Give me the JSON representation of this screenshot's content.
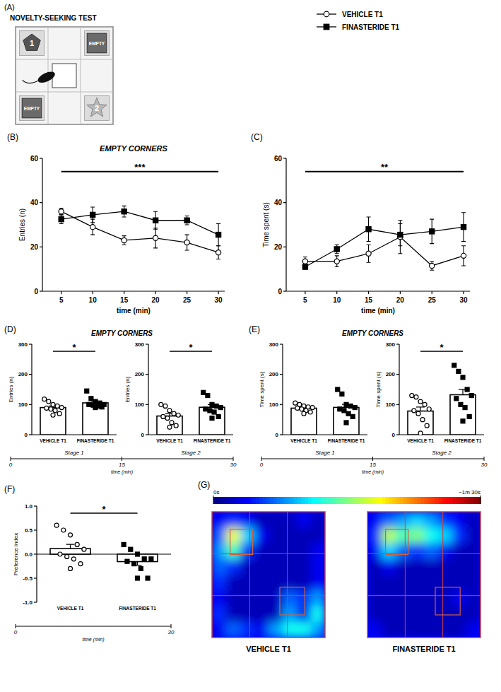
{
  "diagram": {
    "panel": "(A)",
    "title": "NOVELTY-SEEKING TEST",
    "corners": [
      {
        "label": "1",
        "kind": "object"
      },
      {
        "label": "EMPTY",
        "kind": "empty"
      },
      {
        "label": "EMPTY",
        "kind": "empty"
      },
      {
        "label": "2",
        "kind": "object"
      }
    ]
  },
  "chart_data": [
    {
      "type": "line",
      "panel": "(B)",
      "title": "EMPTY CORNERS",
      "xlabel": "time (min)",
      "ylabel": "Entries (n)",
      "x": [
        5,
        10,
        15,
        20,
        25,
        30
      ],
      "xlim": [
        2,
        31
      ],
      "xticks": [
        5,
        10,
        15,
        20,
        25,
        30
      ],
      "ylim": [
        0,
        60
      ],
      "yticks": [
        0,
        20,
        40,
        60
      ],
      "legend": "top-right",
      "significance": "***",
      "series": [
        {
          "name": "VEHICLE T1",
          "color": "#ffffff",
          "marker": "circle",
          "values": [
            36,
            29,
            23,
            24,
            22,
            17.5
          ],
          "errors": [
            1.5,
            3.5,
            2,
            4.5,
            3.5,
            3
          ]
        },
        {
          "name": "FINASTERIDE T1",
          "color": "#000000",
          "marker": "square",
          "values": [
            32.5,
            34.5,
            36,
            32,
            32,
            25.5
          ],
          "errors": [
            2,
            3.5,
            2.5,
            4,
            2,
            5
          ]
        }
      ]
    },
    {
      "type": "line",
      "panel": "(C)",
      "xlabel": "time (min)",
      "ylabel": "Time spent (s)",
      "x": [
        5,
        10,
        15,
        20,
        25,
        30
      ],
      "xlim": [
        2,
        31
      ],
      "xticks": [
        5,
        10,
        15,
        20,
        25,
        30
      ],
      "ylim": [
        0,
        60
      ],
      "yticks": [
        0,
        20,
        40,
        60
      ],
      "significance": "**",
      "series": [
        {
          "color": "#ffffff",
          "marker": "circle",
          "values": [
            13.5,
            13.5,
            17,
            24.5,
            11.5,
            16
          ],
          "errors": [
            2,
            2.5,
            4,
            7.5,
            2,
            4.5
          ]
        },
        {
          "color": "#000000",
          "marker": "square",
          "values": [
            11,
            19,
            28,
            25.5,
            27,
            29
          ],
          "errors": [
            1,
            2,
            5.5,
            5,
            5.5,
            6.5
          ]
        }
      ]
    },
    {
      "type": "bar",
      "panel": "(D)",
      "title": "EMPTY CORNERS",
      "ylabel": "Entries (n)",
      "ylim": [
        0,
        300
      ],
      "yticks": [
        0,
        100,
        200,
        300
      ],
      "categories": [
        "VEHICLE T1",
        "FINASTERIDE T1"
      ],
      "colors": [
        "#ffffff",
        "#ffffff"
      ],
      "stages": [
        {
          "label": "Stage 1",
          "values": [
            90,
            105.5
          ],
          "errors": [
            5,
            5
          ],
          "significance": "*",
          "points": [
            [
              118,
              110,
              100,
              95,
              90,
              88,
              85,
              80,
              70,
              65
            ],
            [
              145,
              120,
              110,
              105,
              100,
              100,
              98,
              95,
              92,
              90
            ]
          ]
        },
        {
          "label": "Stage 2",
          "values": [
            62,
            91
          ],
          "errors": [
            8,
            9
          ],
          "significance": "*",
          "points": [
            [
              100,
              95,
              80,
              70,
              65,
              60,
              55,
              40,
              30,
              25
            ],
            [
              140,
              130,
              100,
              95,
              90,
              85,
              80,
              75,
              60,
              55
            ]
          ]
        }
      ],
      "timeline": {
        "xlabel": "time (min)",
        "xlim": [
          0,
          30
        ],
        "xticks": [
          0,
          15,
          30
        ]
      }
    },
    {
      "type": "bar",
      "panel": "(E)",
      "title": "EMPTY CORNERS",
      "ylabel": "Time spent (s)",
      "ylim": [
        0,
        300
      ],
      "yticks": [
        0,
        100,
        200,
        300
      ],
      "categories": [
        "VEHICLE T1",
        "FINASTERIDE T1"
      ],
      "colors": [
        "#ffffff",
        "#ffffff"
      ],
      "stages": [
        {
          "label": "Stage 1",
          "values": [
            88,
            90.5
          ],
          "errors": [
            3.5,
            10
          ],
          "points": [
            [
              105,
              100,
              95,
              92,
              90,
              88,
              85,
              80,
              75,
              70
            ],
            [
              150,
              135,
              100,
              95,
              90,
              85,
              80,
              70,
              60,
              40
            ]
          ]
        },
        {
          "label": "Stage 2",
          "values": [
            78.5,
            132.5
          ],
          "errors": [
            13,
            18
          ],
          "significance": "*",
          "points": [
            [
              130,
              125,
              110,
              100,
              85,
              80,
              70,
              50,
              30,
              5
            ],
            [
              230,
              210,
              190,
              150,
              130,
              120,
              100,
              90,
              60,
              45
            ]
          ]
        }
      ],
      "timeline": {
        "xlabel": "time (min)",
        "xlim": [
          0,
          30
        ],
        "xticks": [
          0,
          15,
          30
        ]
      }
    },
    {
      "type": "bar",
      "panel": "(F)",
      "ylabel": "Preference index",
      "ylim": [
        -1,
        1
      ],
      "yticks": [
        {
          "value": -1,
          "label": "-1.0"
        },
        {
          "value": -0.5,
          "label": "-0.5"
        },
        {
          "value": 0,
          "label": "0.0"
        },
        {
          "value": 0.5,
          "label": "0.5"
        },
        {
          "value": 1,
          "label": "1.0"
        }
      ],
      "categories": [
        "VEHICLE T1",
        "FINASTERIDE T1"
      ],
      "colors": [
        "#ffffff",
        "#ffffff"
      ],
      "values": [
        0.115,
        -0.155
      ],
      "errors": [
        0.09,
        0.075
      ],
      "significance": "*",
      "points": [
        [
          0.6,
          0.5,
          0.4,
          0.2,
          0.1,
          0.0,
          -0.05,
          -0.1,
          -0.2,
          -0.3
        ],
        [
          0.2,
          0.1,
          0.0,
          -0.1,
          -0.1,
          -0.15,
          -0.2,
          -0.3,
          -0.5,
          -0.5
        ]
      ],
      "timeline": {
        "xlabel": "time (min)",
        "xlim": [
          0,
          30
        ],
        "xticks": [
          0,
          30
        ]
      }
    },
    {
      "type": "heatmap",
      "panel": "(G)",
      "colorbar": {
        "range": [
          0,
          90
        ],
        "ticks": [
          {
            "value": 0,
            "label": "0s"
          },
          {
            "value": 90,
            "label": "~1m 30s"
          }
        ]
      },
      "maps": [
        {
          "label": "VEHICLE T1",
          "cells": [
            [
              10,
              15,
              10,
              5,
              5,
              5,
              10,
              5
            ],
            [
              20,
              55,
              30,
              10,
              5,
              5,
              5,
              5
            ],
            [
              25,
              40,
              15,
              5,
              5,
              5,
              5,
              10
            ],
            [
              20,
              15,
              5,
              5,
              5,
              5,
              5,
              10
            ],
            [
              15,
              5,
              5,
              5,
              5,
              5,
              5,
              10
            ],
            [
              10,
              5,
              5,
              5,
              5,
              20,
              15,
              25
            ],
            [
              15,
              5,
              5,
              5,
              5,
              25,
              10,
              35
            ],
            [
              10,
              20,
              15,
              10,
              25,
              35,
              35,
              25
            ]
          ]
        },
        {
          "label": "FINASTERIDE T1",
          "cells": [
            [
              10,
              20,
              25,
              30,
              25,
              15,
              10,
              5
            ],
            [
              15,
              50,
              40,
              45,
              35,
              30,
              15,
              5
            ],
            [
              10,
              30,
              20,
              15,
              20,
              10,
              5,
              5
            ],
            [
              5,
              10,
              5,
              5,
              5,
              5,
              5,
              5
            ],
            [
              5,
              5,
              5,
              5,
              5,
              5,
              5,
              5
            ],
            [
              5,
              5,
              5,
              5,
              5,
              5,
              10,
              5
            ],
            [
              5,
              5,
              5,
              5,
              5,
              5,
              5,
              5
            ],
            [
              10,
              5,
              5,
              5,
              5,
              5,
              5,
              10
            ]
          ]
        }
      ]
    }
  ]
}
